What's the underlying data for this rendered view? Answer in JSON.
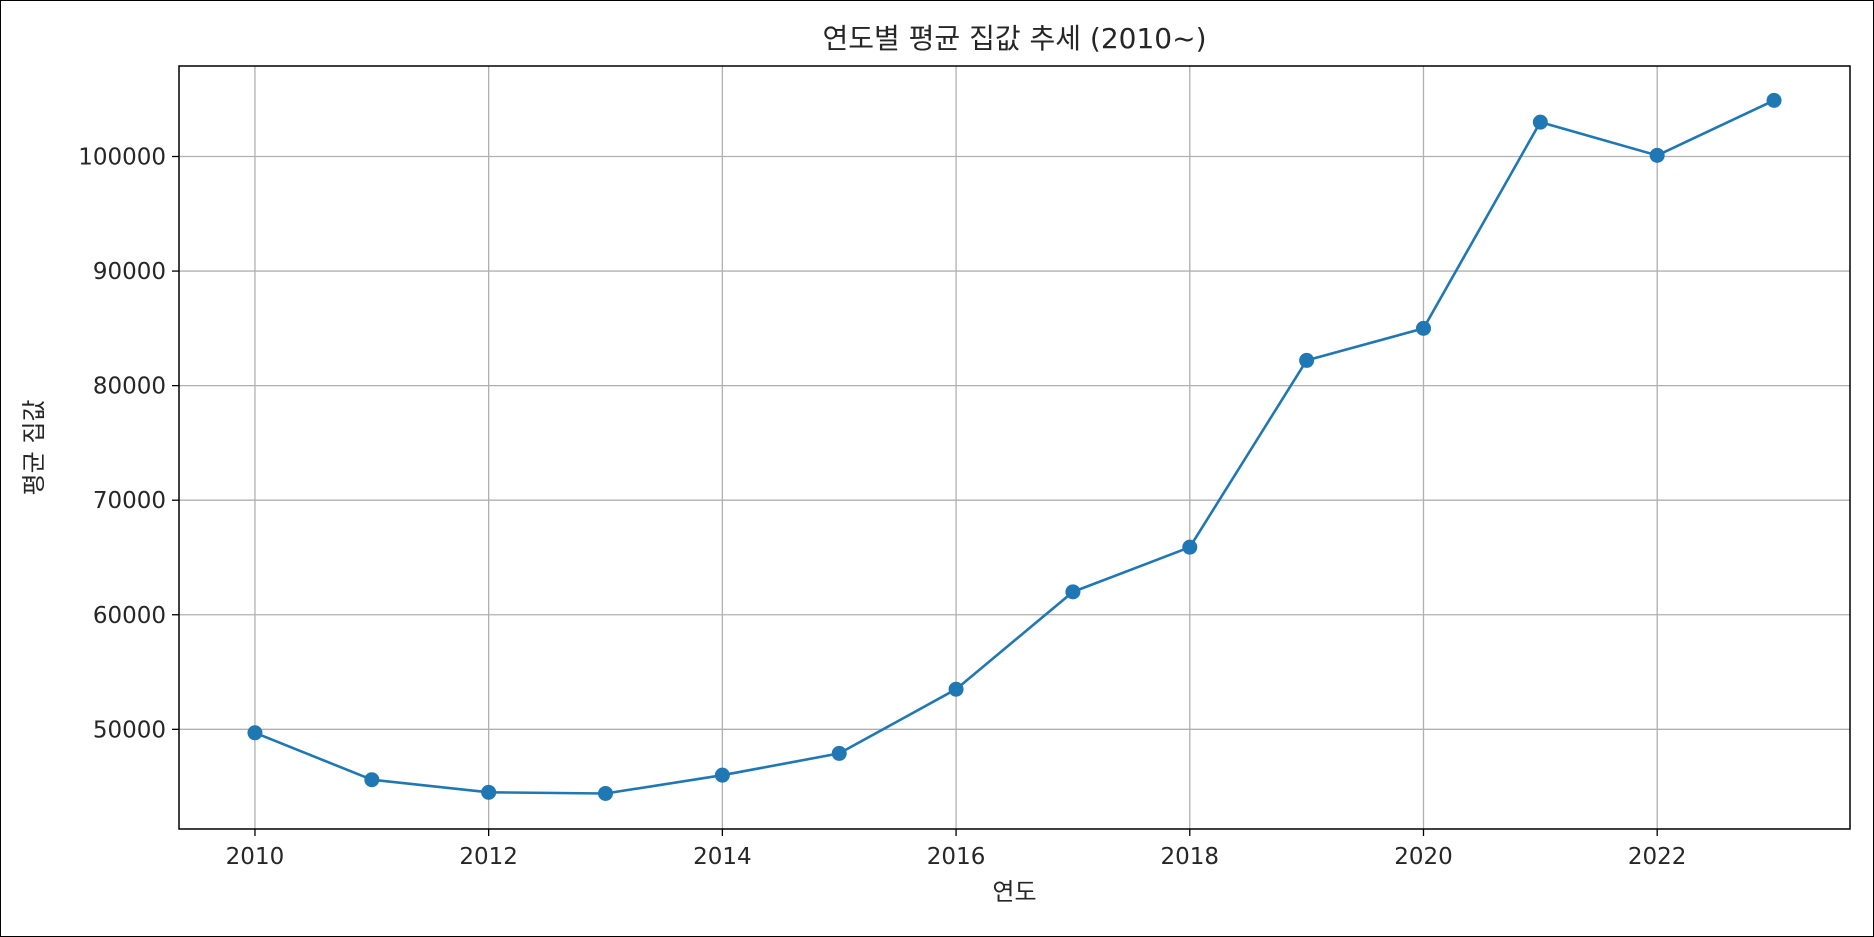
{
  "chart_data": {
    "type": "line",
    "title": "연도별 평균 집값 추세 (2010~)",
    "xlabel": "연도",
    "ylabel": "평균 집값",
    "x": [
      2010,
      2011,
      2012,
      2013,
      2014,
      2015,
      2016,
      2017,
      2018,
      2019,
      2020,
      2021,
      2022,
      2023
    ],
    "series": [
      {
        "values": [
          49700,
          45600,
          44500,
          44400,
          46000,
          47900,
          53500,
          62000,
          65900,
          82200,
          85000,
          103000,
          100100,
          104900
        ]
      }
    ],
    "xlim": [
      2009.35,
      2023.65
    ],
    "ylim": [
      41300,
      107900
    ],
    "xticks": [
      2010,
      2012,
      2014,
      2016,
      2018,
      2020,
      2022
    ],
    "yticks": [
      50000,
      60000,
      70000,
      80000,
      90000,
      100000
    ],
    "xtick_labels": [
      "2010",
      "2012",
      "2014",
      "2016",
      "2018",
      "2020",
      "2022"
    ],
    "ytick_labels": [
      "50000",
      "60000",
      "70000",
      "80000",
      "90000",
      "100000"
    ],
    "grid": true,
    "markers": true,
    "colors": {
      "line": "#1f77b4",
      "grid": "#b0b0b0",
      "axes": "#000000",
      "text": "#262626"
    }
  }
}
